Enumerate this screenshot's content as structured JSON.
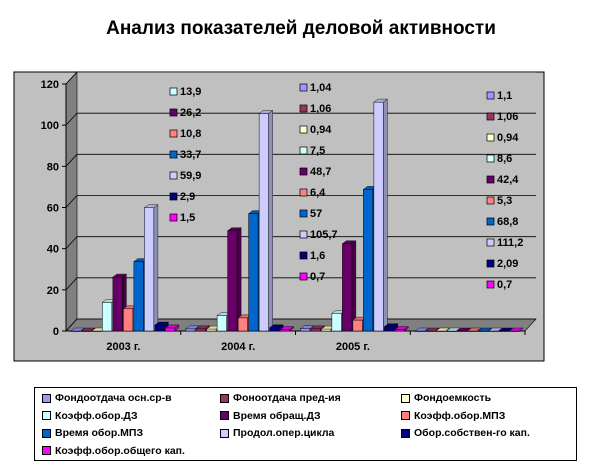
{
  "chart_data": {
    "type": "bar",
    "title": "Анализ показателей деловой активности",
    "categories": [
      "2003 г.",
      "2004 г.",
      "2005 г.",
      ""
    ],
    "ylim": [
      0,
      120
    ],
    "yticks": [
      "0",
      "20",
      "40",
      "60",
      "80",
      "100",
      "120"
    ],
    "grid": true,
    "legend_position": "bottom",
    "series": [
      {
        "name": "Фондоотдача осн.ср-в",
        "color": "#9999ff",
        "values": [
          0,
          1.04,
          1.1,
          0
        ],
        "labels": [
          "",
          "1,04",
          "1,1",
          ""
        ]
      },
      {
        "name": "Фоноотдача пред-ия",
        "color": "#993366",
        "values": [
          0,
          1.06,
          1.06,
          0
        ],
        "labels": [
          "",
          "1,06",
          "1,06",
          ""
        ]
      },
      {
        "name": "Фондоемкость",
        "color": "#ffffcc",
        "values": [
          0,
          0.94,
          0.94,
          0
        ],
        "labels": [
          "",
          "0,94",
          "0,94",
          ""
        ]
      },
      {
        "name": "Коэфф.обор.ДЗ",
        "color": "#ccffff",
        "values": [
          13.9,
          7.5,
          8.6,
          0
        ],
        "labels": [
          "13,9",
          "7,5",
          "8,6",
          ""
        ]
      },
      {
        "name": "Время обращ.ДЗ",
        "color": "#660066",
        "values": [
          26.2,
          48.7,
          42.4,
          0
        ],
        "labels": [
          "26,2",
          "48,7",
          "42,4",
          ""
        ]
      },
      {
        "name": "Коэфф.обор.МПЗ",
        "color": "#ff8080",
        "values": [
          10.8,
          6.4,
          5.3,
          0
        ],
        "labels": [
          "10,8",
          "6,4",
          "5,3",
          ""
        ]
      },
      {
        "name": "Время обор.МПЗ",
        "color": "#0066cc",
        "values": [
          33.7,
          57,
          68.8,
          0
        ],
        "labels": [
          "33,7",
          "57",
          "68,8",
          ""
        ]
      },
      {
        "name": "Продол.опер.цикла",
        "color": "#ccccff",
        "values": [
          59.9,
          105.7,
          111.2,
          0
        ],
        "labels": [
          "59,9",
          "105,7",
          "111,2",
          ""
        ]
      },
      {
        "name": "Обор.собствен-го кап.",
        "color": "#000080",
        "values": [
          2.9,
          1.6,
          2.09,
          0
        ],
        "labels": [
          "2,9",
          "1,6",
          "2,09",
          ""
        ]
      },
      {
        "name": "Коэфф.обор.общего кап.",
        "color": "#ff00ff",
        "values": [
          1.5,
          0.7,
          0.7,
          0
        ],
        "labels": [
          "1,5",
          "0,7",
          "0,7",
          ""
        ]
      }
    ],
    "colors": {
      "plot_background": "#c0c0c0",
      "floor": "#808080",
      "gridline": "#000000"
    }
  }
}
